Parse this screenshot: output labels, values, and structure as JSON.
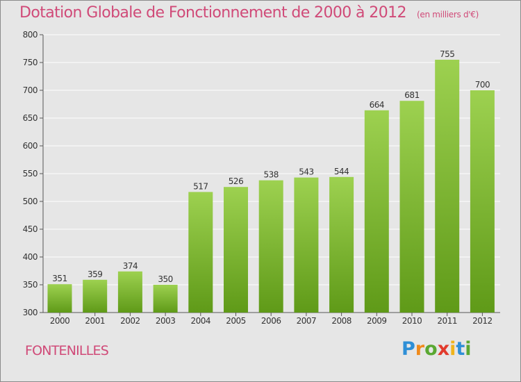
{
  "title": "Dotation Globale de Fonctionnement de 2000 à 2012",
  "subtitle": "(en milliers d'€)",
  "commune": "FONTENILLES",
  "logo": {
    "text": "Proxiti",
    "letters": [
      {
        "ch": "P",
        "color": "#2e8fd6"
      },
      {
        "ch": "r",
        "color": "#f08a1c"
      },
      {
        "ch": "o",
        "color": "#5aa832"
      },
      {
        "ch": "x",
        "color": "#e23a2c"
      },
      {
        "ch": "i",
        "color": "#f0b41c"
      },
      {
        "ch": "t",
        "color": "#2e8fd6"
      },
      {
        "ch": "i",
        "color": "#5aa832"
      }
    ]
  },
  "colors": {
    "bar_top": "#9dd150",
    "bar_bottom": "#5f9a18",
    "title": "#d04a78",
    "grid": "#ffffff",
    "background": "#e6e6e6"
  },
  "chart_data": {
    "type": "bar",
    "categories": [
      "2000",
      "2001",
      "2002",
      "2003",
      "2004",
      "2005",
      "2006",
      "2007",
      "2008",
      "2009",
      "2010",
      "2011",
      "2012"
    ],
    "values": [
      351,
      359,
      374,
      350,
      517,
      526,
      538,
      543,
      544,
      664,
      681,
      755,
      700
    ],
    "ylim": [
      300,
      800
    ],
    "yticks": [
      300,
      350,
      400,
      450,
      500,
      550,
      600,
      650,
      700,
      750,
      800
    ],
    "grid": true,
    "data_labels": true
  }
}
